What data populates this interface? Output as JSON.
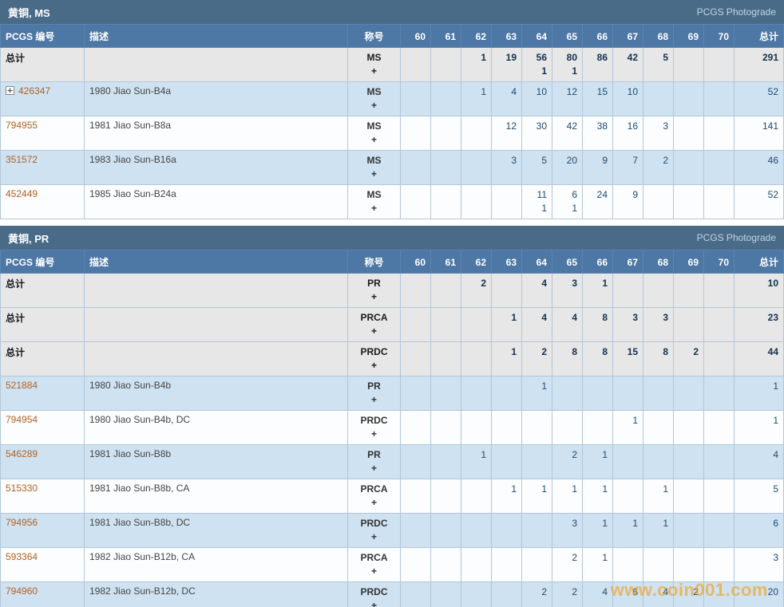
{
  "watermark": "www.coin001.com",
  "columns": {
    "pcgs": "PCGS 编号",
    "desc": "描述",
    "desig": "称号",
    "grades": [
      "60",
      "61",
      "62",
      "63",
      "64",
      "65",
      "66",
      "67",
      "68",
      "69",
      "70"
    ],
    "total": "总计"
  },
  "colors": {
    "section_header": "#4a6b88",
    "column_header": "#4d77a4",
    "row_blue": "#cfe2f1",
    "row_gray": "#e7e7e7",
    "pcgs_number_orange": "#b4611f",
    "count_navy": "#1c4a72",
    "watermark_orange": "#f39c12"
  },
  "tables": [
    {
      "title": "黄铜, MS",
      "header_right": "PCGS Photograde",
      "rows": [
        {
          "type": "total",
          "pcgs": "总计",
          "desc": "",
          "desig": [
            "MS",
            "+"
          ],
          "grades": [
            [
              "",
              ""
            ],
            [
              "",
              ""
            ],
            [
              "1",
              ""
            ],
            [
              "19",
              ""
            ],
            [
              "56",
              "1"
            ],
            [
              "80",
              "1"
            ],
            [
              "86",
              ""
            ],
            [
              "42",
              ""
            ],
            [
              "5",
              ""
            ],
            [
              "",
              ""
            ],
            [
              "",
              ""
            ]
          ],
          "total": "291"
        },
        {
          "type": "item",
          "expand": true,
          "pcgs": "426347",
          "desc": "1980 Jiao Sun-B4a",
          "desig": [
            "MS",
            "+"
          ],
          "grades": [
            [
              "",
              ""
            ],
            [
              "",
              ""
            ],
            [
              "1",
              ""
            ],
            [
              "4",
              ""
            ],
            [
              "10",
              ""
            ],
            [
              "12",
              ""
            ],
            [
              "15",
              ""
            ],
            [
              "10",
              ""
            ],
            [
              "",
              ""
            ],
            [
              "",
              ""
            ],
            [
              "",
              ""
            ]
          ],
          "total": "52"
        },
        {
          "type": "item",
          "pcgs": "794955",
          "desc": "1981 Jiao Sun-B8a",
          "desig": [
            "MS",
            "+"
          ],
          "grades": [
            [
              "",
              ""
            ],
            [
              "",
              ""
            ],
            [
              "",
              ""
            ],
            [
              "12",
              ""
            ],
            [
              "30",
              ""
            ],
            [
              "42",
              ""
            ],
            [
              "38",
              ""
            ],
            [
              "16",
              ""
            ],
            [
              "3",
              ""
            ],
            [
              "",
              ""
            ],
            [
              "",
              ""
            ]
          ],
          "total": "141"
        },
        {
          "type": "item",
          "pcgs": "351572",
          "desc": "1983 Jiao Sun-B16a",
          "desig": [
            "MS",
            "+"
          ],
          "grades": [
            [
              "",
              ""
            ],
            [
              "",
              ""
            ],
            [
              "",
              ""
            ],
            [
              "3",
              ""
            ],
            [
              "5",
              ""
            ],
            [
              "20",
              ""
            ],
            [
              "9",
              ""
            ],
            [
              "7",
              ""
            ],
            [
              "2",
              ""
            ],
            [
              "",
              ""
            ],
            [
              "",
              ""
            ]
          ],
          "total": "46"
        },
        {
          "type": "item",
          "pcgs": "452449",
          "desc": "1985 Jiao Sun-B24a",
          "desig": [
            "MS",
            "+"
          ],
          "grades": [
            [
              "",
              ""
            ],
            [
              "",
              ""
            ],
            [
              "",
              ""
            ],
            [
              "",
              ""
            ],
            [
              "11",
              "1"
            ],
            [
              "6",
              "1"
            ],
            [
              "24",
              ""
            ],
            [
              "9",
              ""
            ],
            [
              "",
              ""
            ],
            [
              "",
              ""
            ],
            [
              "",
              ""
            ]
          ],
          "total": "52"
        }
      ]
    },
    {
      "title": "黄铜, PR",
      "header_right": "PCGS Photograde",
      "rows": [
        {
          "type": "total",
          "pcgs": "总计",
          "desc": "",
          "desig": [
            "PR",
            "+"
          ],
          "grades": [
            [
              "",
              ""
            ],
            [
              "",
              ""
            ],
            [
              "2",
              ""
            ],
            [
              "",
              ""
            ],
            [
              "4",
              ""
            ],
            [
              "3",
              ""
            ],
            [
              "1",
              ""
            ],
            [
              "",
              ""
            ],
            [
              "",
              ""
            ],
            [
              "",
              ""
            ],
            [
              "",
              ""
            ]
          ],
          "total": "10"
        },
        {
          "type": "total",
          "pcgs": "总计",
          "desc": "",
          "desig": [
            "PRCA",
            "+"
          ],
          "grades": [
            [
              "",
              ""
            ],
            [
              "",
              ""
            ],
            [
              "",
              ""
            ],
            [
              "1",
              ""
            ],
            [
              "4",
              ""
            ],
            [
              "4",
              ""
            ],
            [
              "8",
              ""
            ],
            [
              "3",
              ""
            ],
            [
              "3",
              ""
            ],
            [
              "",
              ""
            ],
            [
              "",
              ""
            ]
          ],
          "total": "23"
        },
        {
          "type": "total",
          "pcgs": "总计",
          "desc": "",
          "desig": [
            "PRDC",
            "+"
          ],
          "grades": [
            [
              "",
              ""
            ],
            [
              "",
              ""
            ],
            [
              "",
              ""
            ],
            [
              "1",
              ""
            ],
            [
              "2",
              ""
            ],
            [
              "8",
              ""
            ],
            [
              "8",
              ""
            ],
            [
              "15",
              ""
            ],
            [
              "8",
              ""
            ],
            [
              "2",
              ""
            ],
            [
              "",
              ""
            ]
          ],
          "total": "44"
        },
        {
          "type": "item",
          "pcgs": "521884",
          "desc": "1980 Jiao Sun-B4b",
          "desig": [
            "PR",
            "+"
          ],
          "grades": [
            [
              "",
              ""
            ],
            [
              "",
              ""
            ],
            [
              "",
              ""
            ],
            [
              "",
              ""
            ],
            [
              "1",
              ""
            ],
            [
              "",
              ""
            ],
            [
              "",
              ""
            ],
            [
              "",
              ""
            ],
            [
              "",
              ""
            ],
            [
              "",
              ""
            ],
            [
              "",
              ""
            ]
          ],
          "total": "1"
        },
        {
          "type": "item",
          "pcgs": "794954",
          "desc": "1980 Jiao Sun-B4b, DC",
          "desig": [
            "PRDC",
            "+"
          ],
          "grades": [
            [
              "",
              ""
            ],
            [
              "",
              ""
            ],
            [
              "",
              ""
            ],
            [
              "",
              ""
            ],
            [
              "",
              ""
            ],
            [
              "",
              ""
            ],
            [
              "",
              ""
            ],
            [
              "1",
              ""
            ],
            [
              "",
              ""
            ],
            [
              "",
              ""
            ],
            [
              "",
              ""
            ]
          ],
          "total": "1"
        },
        {
          "type": "item",
          "pcgs": "546289",
          "desc": "1981 Jiao Sun-B8b",
          "desig": [
            "PR",
            "+"
          ],
          "grades": [
            [
              "",
              ""
            ],
            [
              "",
              ""
            ],
            [
              "1",
              ""
            ],
            [
              "",
              ""
            ],
            [
              "",
              ""
            ],
            [
              "2",
              ""
            ],
            [
              "1",
              ""
            ],
            [
              "",
              ""
            ],
            [
              "",
              ""
            ],
            [
              "",
              ""
            ],
            [
              "",
              ""
            ]
          ],
          "total": "4"
        },
        {
          "type": "item",
          "pcgs": "515330",
          "desc": "1981 Jiao Sun-B8b, CA",
          "desig": [
            "PRCA",
            "+"
          ],
          "grades": [
            [
              "",
              ""
            ],
            [
              "",
              ""
            ],
            [
              "",
              ""
            ],
            [
              "1",
              ""
            ],
            [
              "1",
              ""
            ],
            [
              "1",
              ""
            ],
            [
              "1",
              ""
            ],
            [
              "",
              ""
            ],
            [
              "1",
              ""
            ],
            [
              "",
              ""
            ],
            [
              "",
              ""
            ]
          ],
          "total": "5"
        },
        {
          "type": "item",
          "pcgs": "794956",
          "desc": "1981 Jiao Sun-B8b, DC",
          "desig": [
            "PRDC",
            "+"
          ],
          "grades": [
            [
              "",
              ""
            ],
            [
              "",
              ""
            ],
            [
              "",
              ""
            ],
            [
              "",
              ""
            ],
            [
              "",
              ""
            ],
            [
              "3",
              ""
            ],
            [
              "1",
              ""
            ],
            [
              "1",
              ""
            ],
            [
              "1",
              ""
            ],
            [
              "",
              ""
            ],
            [
              "",
              ""
            ]
          ],
          "total": "6"
        },
        {
          "type": "item",
          "pcgs": "593364",
          "desc": "1982 Jiao Sun-B12b, CA",
          "desig": [
            "PRCA",
            "+"
          ],
          "grades": [
            [
              "",
              ""
            ],
            [
              "",
              ""
            ],
            [
              "",
              ""
            ],
            [
              "",
              ""
            ],
            [
              "",
              ""
            ],
            [
              "2",
              ""
            ],
            [
              "1",
              ""
            ],
            [
              "",
              ""
            ],
            [
              "",
              ""
            ],
            [
              "",
              ""
            ],
            [
              "",
              ""
            ]
          ],
          "total": "3"
        },
        {
          "type": "item",
          "pcgs": "794960",
          "desc": "1982 Jiao Sun-B12b, DC",
          "desig": [
            "PRDC",
            "+"
          ],
          "grades": [
            [
              "",
              ""
            ],
            [
              "",
              ""
            ],
            [
              "",
              ""
            ],
            [
              "",
              ""
            ],
            [
              "2",
              ""
            ],
            [
              "2",
              ""
            ],
            [
              "4",
              ""
            ],
            [
              "6",
              ""
            ],
            [
              "4",
              ""
            ],
            [
              "2",
              ""
            ],
            [
              "",
              ""
            ]
          ],
          "total": "20"
        }
      ]
    }
  ]
}
